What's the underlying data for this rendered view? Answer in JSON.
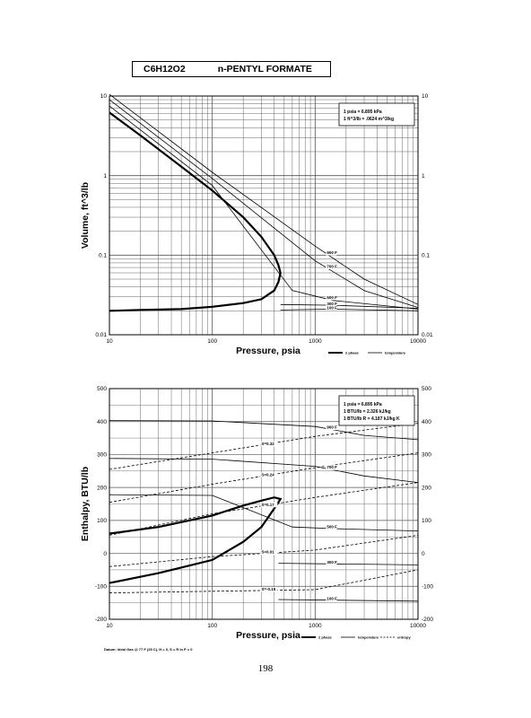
{
  "header": {
    "formula": "C6H12O2",
    "name": "n-PENTYL FORMATE"
  },
  "page_number": "198",
  "colors": {
    "ink": "#000000",
    "grid": "#555555",
    "paper": "#ffffff"
  },
  "chart_data": [
    {
      "type": "line",
      "title": "",
      "xlabel": "Pressure, psia",
      "ylabel": "Volume, ft^3/lb",
      "xscale": "log",
      "yscale": "log",
      "xlim": [
        10,
        10000
      ],
      "ylim": [
        0.01,
        10
      ],
      "xticks": [
        "10",
        "100",
        "1000",
        "10000"
      ],
      "yticks": [
        "0.01",
        "0.1",
        "1",
        "10"
      ],
      "grid": true,
      "notes": [
        "1 psia = 6.895 kPa",
        "1 ft^3/lb = .0624 m^3/kg"
      ],
      "legend": {
        "placement": "bottom-right",
        "items": [
          "2 phase",
          "temperature"
        ]
      },
      "series": [
        {
          "name": "2 phase",
          "kind": "envelope",
          "x": [
            10,
            20,
            50,
            100,
            200,
            300,
            400,
            440,
            460,
            440,
            400,
            300,
            200,
            100,
            50,
            20,
            10
          ],
          "y": [
            6.2,
            3.2,
            1.3,
            0.65,
            0.3,
            0.17,
            0.1,
            0.075,
            0.06,
            0.046,
            0.036,
            0.028,
            0.025,
            0.0225,
            0.021,
            0.0205,
            0.02
          ]
        },
        {
          "name": "900 F",
          "x": [
            10,
            100,
            1000,
            3000,
            10000
          ],
          "y": [
            10.5,
            1.1,
            0.13,
            0.05,
            0.024
          ]
        },
        {
          "name": "700 F",
          "x": [
            10,
            100,
            1000,
            3000,
            10000
          ],
          "y": [
            9,
            0.92,
            0.085,
            0.036,
            0.022
          ]
        },
        {
          "name": "500 F",
          "x": [
            10,
            100,
            600,
            1500,
            10000
          ],
          "y": [
            7.5,
            0.75,
            0.036,
            0.027,
            0.021
          ]
        },
        {
          "name": "300 F",
          "x": [
            460,
            1500,
            10000
          ],
          "y": [
            0.024,
            0.0235,
            0.0215
          ]
        },
        {
          "name": "100 F",
          "x": [
            460,
            1500,
            10000
          ],
          "y": [
            0.0205,
            0.021,
            0.02
          ]
        }
      ],
      "labels": [
        "900 F",
        "700 F",
        "500 F",
        "300 F",
        "100 F"
      ]
    },
    {
      "type": "line",
      "title": "",
      "xlabel": "Pressure, psia",
      "ylabel": "Enthalpy, BTU/lb",
      "xscale": "log",
      "yscale": "linear",
      "xlim": [
        10,
        10000
      ],
      "ylim": [
        -200,
        500
      ],
      "xticks": [
        "10",
        "100",
        "1000",
        "10000"
      ],
      "yticks": [
        "-200",
        "-100",
        "0",
        "100",
        "200",
        "300",
        "400",
        "500"
      ],
      "grid": true,
      "notes": [
        "1 psia = 6.895 kPa",
        "1 BTU/lb = 2.326 kJ/kg",
        "1 BTU/lb R = 4.187 kJ/kg K"
      ],
      "footer": "Datum: Ideal Gas @ 77 F (25 C), H = 0, S = R ln P = 0",
      "legend": {
        "placement": "bottom-right",
        "items": [
          "2 phase",
          "temperature",
          "entropy"
        ]
      },
      "series": [
        {
          "name": "2 phase",
          "kind": "envelope",
          "x": [
            10,
            30,
            100,
            200,
            300,
            400,
            460,
            420,
            300,
            200,
            100,
            30,
            10
          ],
          "y": [
            60,
            80,
            115,
            145,
            160,
            170,
            165,
            145,
            80,
            35,
            -20,
            -60,
            -90
          ]
        },
        {
          "name": "900 F",
          "x": [
            10,
            100,
            1000,
            3000,
            10000
          ],
          "y": [
            403,
            402,
            385,
            358,
            345
          ]
        },
        {
          "name": "700 F",
          "x": [
            10,
            100,
            1000,
            3000,
            10000
          ],
          "y": [
            288,
            286,
            264,
            235,
            215
          ]
        },
        {
          "name": "500 F",
          "x": [
            10,
            100,
            600,
            1500,
            10000
          ],
          "y": [
            178,
            176,
            80,
            75,
            68
          ]
        },
        {
          "name": "300 F",
          "x": [
            440,
            1500,
            10000
          ],
          "y": [
            -30,
            -32,
            -35
          ]
        },
        {
          "name": "100 F",
          "x": [
            440,
            1500,
            10000
          ],
          "y": [
            -140,
            -142,
            -145
          ]
        },
        {
          "name": "S=0.32",
          "x": [
            10,
            100,
            1000,
            10000
          ],
          "y": [
            255,
            305,
            355,
            395
          ]
        },
        {
          "name": "S=0.24",
          "x": [
            10,
            100,
            1000,
            10000
          ],
          "y": [
            155,
            210,
            260,
            305
          ]
        },
        {
          "name": "S=0.17",
          "x": [
            10,
            100,
            1000,
            10000
          ],
          "y": [
            55,
            120,
            170,
            215
          ]
        },
        {
          "name": "S=0.01",
          "x": [
            10,
            100,
            1000,
            10000
          ],
          "y": [
            -40,
            -10,
            10,
            55
          ]
        },
        {
          "name": "S=-0.15",
          "x": [
            10,
            100,
            1000,
            10000
          ],
          "y": [
            -120,
            -115,
            -110,
            -50
          ]
        }
      ],
      "labels": [
        "900 F",
        "700 F",
        "500 F",
        "300 F",
        "100 F",
        "S=0.32",
        "S=0.24",
        "S=0.17",
        "S=0.01",
        "S=-0.15"
      ]
    }
  ]
}
